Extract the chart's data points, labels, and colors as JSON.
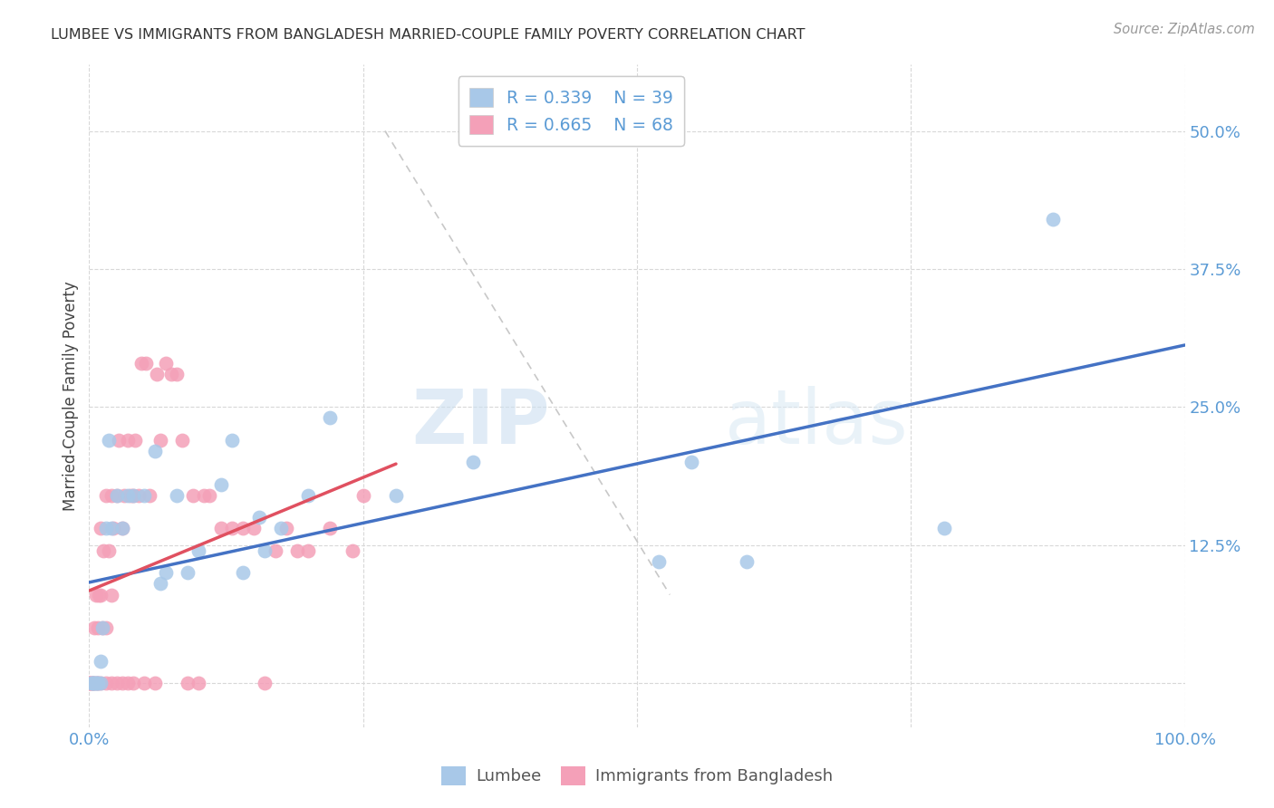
{
  "title": "LUMBEE VS IMMIGRANTS FROM BANGLADESH MARRIED-COUPLE FAMILY POVERTY CORRELATION CHART",
  "source": "Source: ZipAtlas.com",
  "ylabel": "Married-Couple Family Poverty",
  "ytick_values": [
    0.0,
    0.125,
    0.25,
    0.375,
    0.5
  ],
  "ytick_labels": [
    "",
    "12.5%",
    "25.0%",
    "37.5%",
    "50.0%"
  ],
  "xlim": [
    0.0,
    1.0
  ],
  "ylim": [
    -0.04,
    0.56
  ],
  "legend_lumbee_R": "0.339",
  "legend_lumbee_N": "39",
  "legend_bangladesh_R": "0.665",
  "legend_bangladesh_N": "68",
  "lumbee_color": "#a8c8e8",
  "bangladesh_color": "#f4a0b8",
  "lumbee_line_color": "#4472c4",
  "bangladesh_line_color": "#e05060",
  "diagonal_color": "#c8c8c8",
  "watermark_zip": "ZIP",
  "watermark_atlas": "atlas",
  "lumbee_scatter_x": [
    0.002,
    0.003,
    0.004,
    0.005,
    0.006,
    0.007,
    0.008,
    0.01,
    0.01,
    0.012,
    0.015,
    0.018,
    0.02,
    0.025,
    0.03,
    0.035,
    0.04,
    0.05,
    0.06,
    0.065,
    0.07,
    0.08,
    0.09,
    0.1,
    0.12,
    0.13,
    0.14,
    0.155,
    0.16,
    0.175,
    0.2,
    0.22,
    0.28,
    0.35,
    0.52,
    0.55,
    0.6,
    0.78,
    0.88
  ],
  "lumbee_scatter_y": [
    0.0,
    0.0,
    0.0,
    0.0,
    0.0,
    0.0,
    0.0,
    0.0,
    0.02,
    0.05,
    0.14,
    0.22,
    0.14,
    0.17,
    0.14,
    0.17,
    0.17,
    0.17,
    0.21,
    0.09,
    0.1,
    0.17,
    0.1,
    0.12,
    0.18,
    0.22,
    0.1,
    0.15,
    0.12,
    0.14,
    0.17,
    0.24,
    0.17,
    0.2,
    0.11,
    0.2,
    0.11,
    0.14,
    0.42
  ],
  "bangladesh_scatter_x": [
    0.0,
    0.0,
    0.0,
    0.001,
    0.002,
    0.003,
    0.004,
    0.005,
    0.005,
    0.006,
    0.007,
    0.008,
    0.008,
    0.009,
    0.01,
    0.01,
    0.01,
    0.012,
    0.013,
    0.015,
    0.015,
    0.015,
    0.018,
    0.02,
    0.02,
    0.02,
    0.022,
    0.025,
    0.025,
    0.027,
    0.03,
    0.03,
    0.032,
    0.035,
    0.035,
    0.038,
    0.04,
    0.04,
    0.042,
    0.045,
    0.048,
    0.05,
    0.052,
    0.055,
    0.06,
    0.062,
    0.065,
    0.07,
    0.075,
    0.08,
    0.085,
    0.09,
    0.095,
    0.1,
    0.105,
    0.11,
    0.12,
    0.13,
    0.14,
    0.15,
    0.16,
    0.17,
    0.18,
    0.19,
    0.2,
    0.22,
    0.24,
    0.25
  ],
  "bangladesh_scatter_y": [
    0.0,
    0.0,
    0.0,
    0.0,
    0.0,
    0.0,
    0.0,
    0.0,
    0.05,
    0.08,
    0.0,
    0.0,
    0.05,
    0.08,
    0.0,
    0.08,
    0.14,
    0.05,
    0.12,
    0.0,
    0.05,
    0.17,
    0.12,
    0.0,
    0.08,
    0.17,
    0.14,
    0.0,
    0.17,
    0.22,
    0.0,
    0.14,
    0.17,
    0.0,
    0.22,
    0.17,
    0.0,
    0.17,
    0.22,
    0.17,
    0.29,
    0.0,
    0.29,
    0.17,
    0.0,
    0.28,
    0.22,
    0.29,
    0.28,
    0.28,
    0.22,
    0.0,
    0.17,
    0.0,
    0.17,
    0.17,
    0.14,
    0.14,
    0.14,
    0.14,
    0.0,
    0.12,
    0.14,
    0.12,
    0.12,
    0.14,
    0.12,
    0.17
  ]
}
